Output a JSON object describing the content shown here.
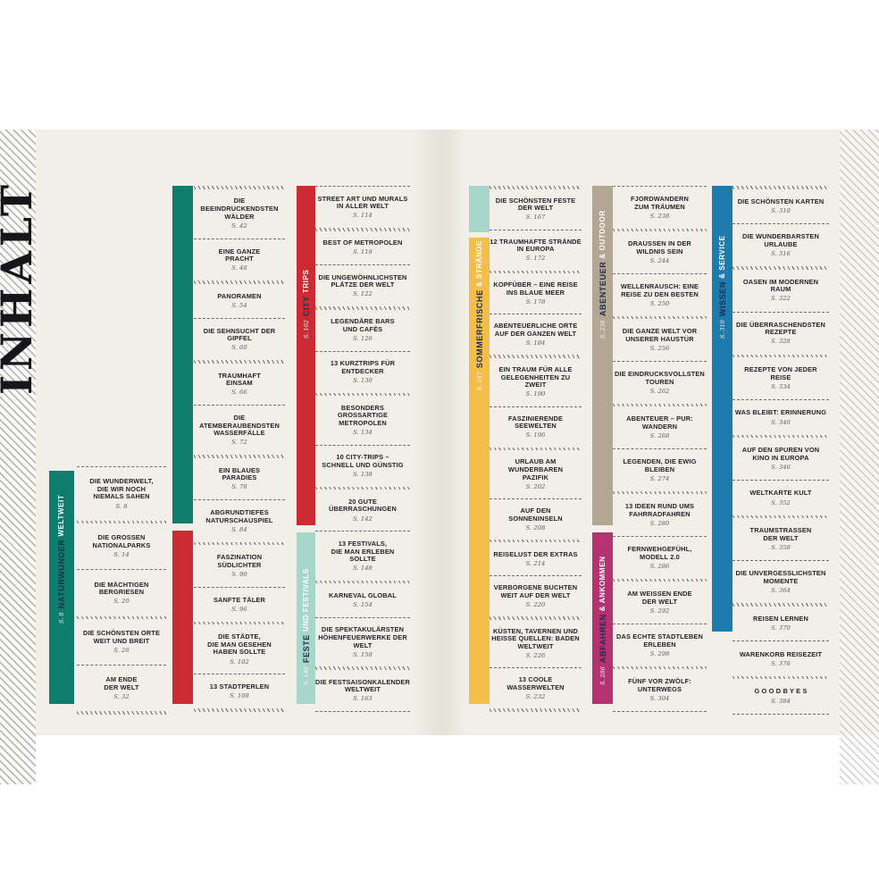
{
  "page_title": "INHALT",
  "page_background": "#f2efe8",
  "sections": {
    "naturwunder": {
      "label_bold": "NATURWUNDER",
      "label_light": "WELTWEIT",
      "page": "S. 8",
      "color": "#0e7d6c"
    },
    "city-trips": {
      "label_bold": "CITY",
      "label_light": "TRIPS",
      "page": "S. 102",
      "color": "#cd2b33"
    },
    "feste": {
      "label_bold": "FESTE",
      "label_light": "UND FESTIVALS",
      "page": "S. 148",
      "color": "#a9d6cb"
    },
    "sommerfrische": {
      "label_bold": "SOMMERFRISCHE",
      "label_light": "& STRÄNDE",
      "page": "S. 167",
      "color": "#f5bd49"
    },
    "abenteuer": {
      "label_bold": "ABENTEUER",
      "label_light": "& OUTDOOR",
      "page": "S. 238",
      "color": "#b3a693"
    },
    "abfahren": {
      "label_bold": "ABFAHREN",
      "label_light": "& ANKOMMEN",
      "page": "S. 286",
      "color": "#b43270"
    },
    "wissen": {
      "label_bold": "WISSEN",
      "label_light": "& SERVICE",
      "page": "S. 310",
      "color": "#1d7cad"
    }
  },
  "columns": [
    {
      "bars": [
        {
          "section": "naturwunder",
          "show_label": true
        }
      ],
      "entries": [
        {
          "title": [
            "DIE WUNDERWELT,",
            "DIE WIR NOCH",
            "NIEMALS SAHEN"
          ],
          "page": "S. 8"
        },
        {
          "title": [
            "DIE GROSSEN",
            "NATIONALPARKS"
          ],
          "page": "S. 14"
        },
        {
          "title": [
            "DIE MÄCHTIGEN",
            "BERGRIESEN"
          ],
          "page": "S. 20"
        },
        {
          "title": [
            "DIE SCHÖNSTEN ORTE",
            "WEIT UND BREIT"
          ],
          "page": "S. 26"
        },
        {
          "title": [
            "AM ENDE",
            "DER WELT"
          ],
          "page": "S. 32"
        }
      ]
    },
    {
      "bars": [
        {
          "section": "naturwunder",
          "show_label": false
        },
        {
          "section": "city-trips",
          "show_label": false
        }
      ],
      "entries": [
        {
          "title": [
            "DIE BEEINDRUCKENDSTEN",
            "WÄLDER"
          ],
          "page": "S. 42"
        },
        {
          "title": [
            "EINE GANZE",
            "PRACHT"
          ],
          "page": "S. 48"
        },
        {
          "title": [
            "PANORAMEN"
          ],
          "page": "S. 54"
        },
        {
          "title": [
            "DIE SEHNSUCHT DER",
            "GIPFEL"
          ],
          "page": "S. 60"
        },
        {
          "title": [
            "TRAUMHAFT",
            "EINSAM"
          ],
          "page": "S. 66"
        },
        {
          "title": [
            "DIE ATEMBERAUBENDSTEN",
            "WASSERFÄLLE"
          ],
          "page": "S. 72"
        },
        {
          "title": [
            "EIN BLAUES",
            "PARADIES"
          ],
          "page": "S. 78"
        },
        {
          "title": [
            "ABGRUNDTIEFES",
            "NATURSCHAUSPIEL"
          ],
          "page": "S. 84"
        },
        {
          "title": [
            "FASZINATION",
            "SÜDLICHTER"
          ],
          "page": "S. 90"
        },
        {
          "title": [
            "SANFTE TÄLER"
          ],
          "page": "S. 96"
        },
        {
          "title": [
            "DIE STÄDTE,",
            "DIE MAN GESEHEN",
            "HABEN SOLLTE"
          ],
          "page": "S. 102"
        },
        {
          "title": [
            "13 STADTPERLEN"
          ],
          "page": "S. 108"
        }
      ]
    },
    {
      "bars": [
        {
          "section": "city-trips",
          "show_label": true
        },
        {
          "section": "feste",
          "show_label": true
        }
      ],
      "entries": [
        {
          "title": [
            "STREET ART UND MURALS",
            "IN ALLER WELT"
          ],
          "page": "S. 114"
        },
        {
          "title": [
            "BEST OF METROPOLEN"
          ],
          "page": "S. 118"
        },
        {
          "title": [
            "DIE UNGEWÖHNLICHSTEN",
            "PLÄTZE DER WELT"
          ],
          "page": "S. 122"
        },
        {
          "title": [
            "LEGENDÄRE BARS",
            "UND CAFÉS"
          ],
          "page": "S. 126"
        },
        {
          "title": [
            "13 KURZTRIPS FÜR",
            "ENTDECKER"
          ],
          "page": "S. 130"
        },
        {
          "title": [
            "BESONDERS GROSSARTIGE",
            "METROPOLEN"
          ],
          "page": "S. 134"
        },
        {
          "title": [
            "10 CITY-TRIPS –",
            "SCHNELL UND GÜNSTIG"
          ],
          "page": "S. 138"
        },
        {
          "title": [
            "20 GUTE ÜBERRASCHUNGEN"
          ],
          "page": "S. 142"
        },
        {
          "title": [
            "13 FESTIVALS,",
            "DIE MAN ERLEBEN",
            "SOLLTE"
          ],
          "page": "S. 148"
        },
        {
          "title": [
            "KARNEVAL GLOBAL"
          ],
          "page": "S. 154"
        },
        {
          "title": [
            "DIE SPEKTAKULÄRSTEN",
            "HÖHENFEUERWERKE DER WELT"
          ],
          "page": "S. 158"
        },
        {
          "title": [
            "DIE FESTSAISONKALENDER",
            "WELTWEIT"
          ],
          "page": "S. 163"
        }
      ]
    },
    {
      "bars": [
        {
          "section": "feste",
          "show_label": false
        },
        {
          "section": "sommerfrische",
          "show_label": true
        }
      ],
      "entries": [
        {
          "title": [
            "DIE SCHÖNSTEN FESTE",
            "DER WELT"
          ],
          "page": "S. 167"
        },
        {
          "title": [
            "12 TRAUMHAFTE STRÄNDE",
            "IN EUROPA"
          ],
          "page": "S. 172"
        },
        {
          "title": [
            "KOPFÜBER – EINE REISE",
            "INS BLAUE MEER"
          ],
          "page": "S. 178"
        },
        {
          "title": [
            "ABENTEUERLICHE ORTE",
            "AUF DER GANZEN WELT"
          ],
          "page": "S. 184"
        },
        {
          "title": [
            "EIN TRAUM FÜR ALLE",
            "GELEGENHEITEN ZU ZWEIT"
          ],
          "page": "S. 190"
        },
        {
          "title": [
            "FASZINIERENDE",
            "SEEWELTEN"
          ],
          "page": "S. 196"
        },
        {
          "title": [
            "URLAUB AM WUNDERBAREN",
            "PAZIFIK"
          ],
          "page": "S. 202"
        },
        {
          "title": [
            "AUF DEN",
            "SONNENINSELN"
          ],
          "page": "S. 208"
        },
        {
          "title": [
            "REISELUST DER EXTRAS"
          ],
          "page": "S. 214"
        },
        {
          "title": [
            "VERBORGENE BUCHTEN",
            "WEIT AUF DER WELT"
          ],
          "page": "S. 220"
        },
        {
          "title": [
            "KÜSTEN, TAVERNEN UND",
            "HEISSE QUELLEN: BADEN",
            "WELTWEIT"
          ],
          "page": "S. 226"
        },
        {
          "title": [
            "13 COOLE WASSERWELTEN"
          ],
          "page": "S. 232"
        }
      ]
    },
    {
      "bars": [
        {
          "section": "abenteuer",
          "show_label": true
        },
        {
          "section": "abfahren",
          "show_label": true
        }
      ],
      "entries": [
        {
          "title": [
            "FJORDWANDERN",
            "ZUM TRÄUMEN"
          ],
          "page": "S. 238"
        },
        {
          "title": [
            "DRAUSSEN IN DER",
            "WILDNIS SEIN"
          ],
          "page": "S. 244"
        },
        {
          "title": [
            "WELLENRAUSCH: EINE",
            "REISE ZU DEN BESTEN"
          ],
          "page": "S. 250"
        },
        {
          "title": [
            "DIE GANZE WELT VOR",
            "UNSERER HAUSTÜR"
          ],
          "page": "S. 256"
        },
        {
          "title": [
            "DIE EINDRUCKSVOLLSTEN",
            "TOUREN"
          ],
          "page": "S. 262"
        },
        {
          "title": [
            "ABENTEUER – PUR: WANDERN"
          ],
          "page": "S. 268"
        },
        {
          "title": [
            "LEGENDEN, DIE EWIG",
            "BLEIBEN"
          ],
          "page": "S. 274"
        },
        {
          "title": [
            "13 IDEEN RUND UMS",
            "FAHRRADFAHREN"
          ],
          "page": "S. 280"
        },
        {
          "title": [
            "FERNWEHGEFÜHL,",
            "MODELL 2.0"
          ],
          "page": "S. 286"
        },
        {
          "title": [
            "AM WEISSEN ENDE",
            "DER WELT"
          ],
          "page": "S. 292"
        },
        {
          "title": [
            "DAS ECHTE STADTLEBEN",
            "ERLEBEN"
          ],
          "page": "S. 298"
        },
        {
          "title": [
            "FÜNF VOR ZWÖLF:",
            "UNTERWEGS"
          ],
          "page": "S. 304"
        }
      ]
    },
    {
      "bars": [
        {
          "section": "wissen",
          "show_label": true
        }
      ],
      "entries": [
        {
          "title": [
            "DIE SCHÖNSTEN KARTEN"
          ],
          "page": "S. 310"
        },
        {
          "title": [
            "DIE WUNDERBARSTEN",
            "URLAUBE"
          ],
          "page": "S. 316"
        },
        {
          "title": [
            "OASEN IM MODERNEN RAUM"
          ],
          "page": "S. 322"
        },
        {
          "title": [
            "DIE ÜBERRASCHENDSTEN",
            "REZEPTE"
          ],
          "page": "S. 328"
        },
        {
          "title": [
            "REZEPTE VON JEDER",
            "REISE"
          ],
          "page": "S. 334"
        },
        {
          "title": [
            "WAS BLEIBT: ERINNERUNG"
          ],
          "page": "S. 340"
        },
        {
          "title": [
            "AUF DEN SPUREN VON",
            "KINO IN EUROPA"
          ],
          "page": "S. 346"
        },
        {
          "title": [
            "WELTKARTE KULT"
          ],
          "page": "S. 352"
        },
        {
          "title": [
            "TRAUMSTRASSEN",
            "DER WELT"
          ],
          "page": "S. 358"
        },
        {
          "title": [
            "DIE UNVERGESSLICHSTEN",
            "MOMENTE"
          ],
          "page": "S. 364"
        },
        {
          "title": [
            "REISEN LERNEN"
          ],
          "page": "S. 370"
        },
        {
          "title": [
            "WARENKORB REISEZEIT"
          ],
          "page": "S. 376"
        },
        {
          "title": [
            "G O O D B Y E S"
          ],
          "page": "S. 384"
        }
      ]
    }
  ]
}
